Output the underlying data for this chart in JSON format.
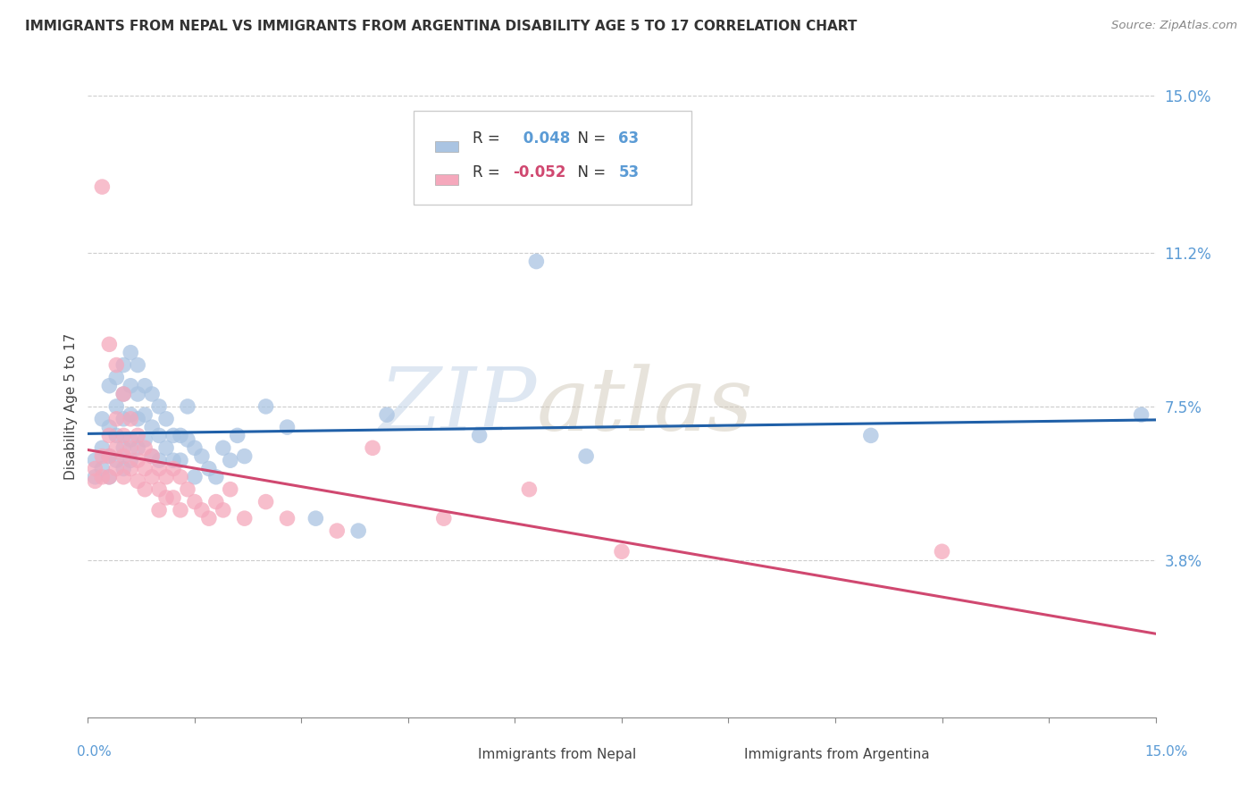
{
  "title": "IMMIGRANTS FROM NEPAL VS IMMIGRANTS FROM ARGENTINA DISABILITY AGE 5 TO 17 CORRELATION CHART",
  "source": "Source: ZipAtlas.com",
  "ylabel": "Disability Age 5 to 17",
  "xlim": [
    0.0,
    0.15
  ],
  "ylim": [
    0.0,
    0.15
  ],
  "yticks": [
    0.038,
    0.075,
    0.112,
    0.15
  ],
  "ytick_labels": [
    "3.8%",
    "7.5%",
    "11.2%",
    "15.0%"
  ],
  "nepal_color": "#aac4e2",
  "argentina_color": "#f5a8bc",
  "nepal_line_color": "#2060a8",
  "argentina_line_color": "#d04870",
  "nepal_R": 0.048,
  "nepal_N": 63,
  "argentina_R": -0.052,
  "argentina_N": 53,
  "watermark_zip": "ZIP",
  "watermark_atlas": "atlas",
  "legend_color": "#5b9bd5",
  "nepal_scatter": [
    [
      0.001,
      0.062
    ],
    [
      0.001,
      0.058
    ],
    [
      0.002,
      0.072
    ],
    [
      0.002,
      0.065
    ],
    [
      0.002,
      0.06
    ],
    [
      0.003,
      0.08
    ],
    [
      0.003,
      0.07
    ],
    [
      0.003,
      0.063
    ],
    [
      0.003,
      0.058
    ],
    [
      0.004,
      0.082
    ],
    [
      0.004,
      0.075
    ],
    [
      0.004,
      0.068
    ],
    [
      0.004,
      0.062
    ],
    [
      0.005,
      0.085
    ],
    [
      0.005,
      0.078
    ],
    [
      0.005,
      0.072
    ],
    [
      0.005,
      0.065
    ],
    [
      0.005,
      0.06
    ],
    [
      0.006,
      0.088
    ],
    [
      0.006,
      0.08
    ],
    [
      0.006,
      0.073
    ],
    [
      0.006,
      0.067
    ],
    [
      0.006,
      0.062
    ],
    [
      0.007,
      0.085
    ],
    [
      0.007,
      0.078
    ],
    [
      0.007,
      0.072
    ],
    [
      0.007,
      0.065
    ],
    [
      0.008,
      0.08
    ],
    [
      0.008,
      0.073
    ],
    [
      0.008,
      0.067
    ],
    [
      0.009,
      0.078
    ],
    [
      0.009,
      0.07
    ],
    [
      0.009,
      0.063
    ],
    [
      0.01,
      0.075
    ],
    [
      0.01,
      0.068
    ],
    [
      0.01,
      0.062
    ],
    [
      0.011,
      0.072
    ],
    [
      0.011,
      0.065
    ],
    [
      0.012,
      0.068
    ],
    [
      0.012,
      0.062
    ],
    [
      0.013,
      0.068
    ],
    [
      0.013,
      0.062
    ],
    [
      0.014,
      0.075
    ],
    [
      0.014,
      0.067
    ],
    [
      0.015,
      0.065
    ],
    [
      0.015,
      0.058
    ],
    [
      0.016,
      0.063
    ],
    [
      0.017,
      0.06
    ],
    [
      0.018,
      0.058
    ],
    [
      0.019,
      0.065
    ],
    [
      0.02,
      0.062
    ],
    [
      0.021,
      0.068
    ],
    [
      0.022,
      0.063
    ],
    [
      0.025,
      0.075
    ],
    [
      0.028,
      0.07
    ],
    [
      0.032,
      0.048
    ],
    [
      0.038,
      0.045
    ],
    [
      0.042,
      0.073
    ],
    [
      0.055,
      0.068
    ],
    [
      0.063,
      0.11
    ],
    [
      0.07,
      0.063
    ],
    [
      0.11,
      0.068
    ],
    [
      0.148,
      0.073
    ]
  ],
  "argentina_scatter": [
    [
      0.001,
      0.06
    ],
    [
      0.001,
      0.057
    ],
    [
      0.002,
      0.128
    ],
    [
      0.002,
      0.063
    ],
    [
      0.002,
      0.058
    ],
    [
      0.003,
      0.09
    ],
    [
      0.003,
      0.068
    ],
    [
      0.003,
      0.063
    ],
    [
      0.003,
      0.058
    ],
    [
      0.004,
      0.085
    ],
    [
      0.004,
      0.072
    ],
    [
      0.004,
      0.065
    ],
    [
      0.004,
      0.06
    ],
    [
      0.005,
      0.078
    ],
    [
      0.005,
      0.068
    ],
    [
      0.005,
      0.063
    ],
    [
      0.005,
      0.058
    ],
    [
      0.006,
      0.072
    ],
    [
      0.006,
      0.065
    ],
    [
      0.006,
      0.06
    ],
    [
      0.007,
      0.068
    ],
    [
      0.007,
      0.062
    ],
    [
      0.007,
      0.057
    ],
    [
      0.008,
      0.065
    ],
    [
      0.008,
      0.06
    ],
    [
      0.008,
      0.055
    ],
    [
      0.009,
      0.063
    ],
    [
      0.009,
      0.058
    ],
    [
      0.01,
      0.06
    ],
    [
      0.01,
      0.055
    ],
    [
      0.01,
      0.05
    ],
    [
      0.011,
      0.058
    ],
    [
      0.011,
      0.053
    ],
    [
      0.012,
      0.06
    ],
    [
      0.012,
      0.053
    ],
    [
      0.013,
      0.058
    ],
    [
      0.013,
      0.05
    ],
    [
      0.014,
      0.055
    ],
    [
      0.015,
      0.052
    ],
    [
      0.016,
      0.05
    ],
    [
      0.017,
      0.048
    ],
    [
      0.018,
      0.052
    ],
    [
      0.019,
      0.05
    ],
    [
      0.02,
      0.055
    ],
    [
      0.022,
      0.048
    ],
    [
      0.025,
      0.052
    ],
    [
      0.028,
      0.048
    ],
    [
      0.035,
      0.045
    ],
    [
      0.04,
      0.065
    ],
    [
      0.05,
      0.048
    ],
    [
      0.062,
      0.055
    ],
    [
      0.075,
      0.04
    ],
    [
      0.12,
      0.04
    ]
  ]
}
